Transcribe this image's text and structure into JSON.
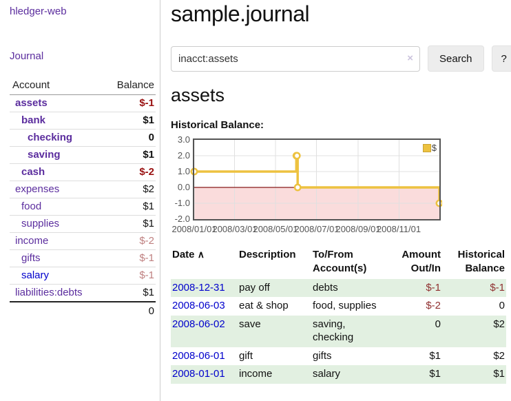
{
  "app": {
    "brand": "hledger-web",
    "nav_journal": "Journal"
  },
  "colors": {
    "accent_purple": "#5b2d9e",
    "link_blue": "#0000cc",
    "negative_strong": "#991111",
    "negative_soft": "#bf8080",
    "register_negative": "#8f2f2f",
    "stripe_green": "#e2f0e1",
    "chart_series_yellow": "#edc240",
    "chart_negative_region": "#fadcdc",
    "chart_zero_line": "#871919"
  },
  "sidebar": {
    "account_header": "Account",
    "balance_header": "Balance",
    "accounts": [
      {
        "name": "assets",
        "depth": 0,
        "bold": true,
        "balance": "$-1",
        "neg": "strong",
        "link": "purple"
      },
      {
        "name": "bank",
        "depth": 1,
        "bold": true,
        "balance": "$1",
        "neg": "",
        "link": "purple"
      },
      {
        "name": "checking",
        "depth": 2,
        "bold": true,
        "balance": "0",
        "neg": "",
        "link": "purple"
      },
      {
        "name": "saving",
        "depth": 2,
        "bold": true,
        "balance": "$1",
        "neg": "",
        "link": "purple"
      },
      {
        "name": "cash",
        "depth": 1,
        "bold": true,
        "balance": "$-2",
        "neg": "strong",
        "link": "purple"
      },
      {
        "name": "expenses",
        "depth": 0,
        "bold": false,
        "balance": "$2",
        "neg": "",
        "link": "purple"
      },
      {
        "name": "food",
        "depth": 1,
        "bold": false,
        "balance": "$1",
        "neg": "",
        "link": "purple"
      },
      {
        "name": "supplies",
        "depth": 1,
        "bold": false,
        "balance": "$1",
        "neg": "",
        "link": "purple"
      },
      {
        "name": "income",
        "depth": 0,
        "bold": false,
        "balance": "$-2",
        "neg": "soft",
        "link": "purple"
      },
      {
        "name": "gifts",
        "depth": 1,
        "bold": false,
        "balance": "$-1",
        "neg": "soft",
        "link": "purple"
      },
      {
        "name": "salary",
        "depth": 1,
        "bold": false,
        "balance": "$-1",
        "neg": "soft",
        "link": "blue"
      },
      {
        "name": "liabilities:debts",
        "depth": 0,
        "bold": false,
        "balance": "$1",
        "neg": "",
        "link": "purple"
      }
    ],
    "total": "0"
  },
  "header": {
    "title": "sample.journal"
  },
  "search": {
    "value": "inacct:assets",
    "clear_icon": "×",
    "button": "Search",
    "help_button": "?"
  },
  "account_page": {
    "heading": "assets",
    "chart_label": "Historical Balance:"
  },
  "chart_data": {
    "type": "line",
    "style": "steps",
    "title": "Historical Balance:",
    "series": [
      {
        "name": "$",
        "color": "#edc240",
        "points": [
          [
            "2008-01-01",
            1
          ],
          [
            "2008-06-01",
            2
          ],
          [
            "2008-06-02",
            2
          ],
          [
            "2008-06-03",
            0
          ],
          [
            "2008-12-31",
            -1
          ]
        ]
      }
    ],
    "xlim": [
      "2008-01-01",
      "2008-12-31"
    ],
    "ylim": [
      -2,
      3
    ],
    "y_ticks": [
      3.0,
      2.0,
      1.0,
      0.0,
      -1.0,
      -2.0
    ],
    "x_ticks": [
      {
        "label": "2008/01/01",
        "date": "2008-01-01"
      },
      {
        "label": "2008/03/01",
        "date": "2008-03-01"
      },
      {
        "label": "2008/05/01",
        "date": "2008-05-01"
      },
      {
        "label": "2008/07/01",
        "date": "2008-07-01"
      },
      {
        "label": "2008/09/01",
        "date": "2008-09-01"
      },
      {
        "label": "2008/11/01",
        "date": "2008-11-01"
      }
    ],
    "grid": true,
    "legend_position": "top-right",
    "negative_region_color": "#fadcdc",
    "zero_line_color": "#871919"
  },
  "register": {
    "headers": {
      "date": "Date",
      "sort_icon": "∧",
      "description": "Description",
      "accounts": "To/From Account(s)",
      "amount": "Amount Out/In",
      "balance": "Historical Balance"
    },
    "rows": [
      {
        "date": "2008-12-31",
        "description": "pay off",
        "accounts": "debts",
        "amount": "$-1",
        "amount_negative": true,
        "balance": "$-1",
        "balance_negative": true
      },
      {
        "date": "2008-06-03",
        "description": "eat & shop",
        "accounts": "food, supplies",
        "amount": "$-2",
        "amount_negative": true,
        "balance": "0",
        "balance_negative": false
      },
      {
        "date": "2008-06-02",
        "description": "save",
        "accounts": "saving, checking",
        "amount": "0",
        "amount_negative": false,
        "balance": "$2",
        "balance_negative": false
      },
      {
        "date": "2008-06-01",
        "description": "gift",
        "accounts": "gifts",
        "amount": "$1",
        "amount_negative": false,
        "balance": "$2",
        "balance_negative": false
      },
      {
        "date": "2008-01-01",
        "description": "income",
        "accounts": "salary",
        "amount": "$1",
        "amount_negative": false,
        "balance": "$1",
        "balance_negative": false
      }
    ]
  }
}
